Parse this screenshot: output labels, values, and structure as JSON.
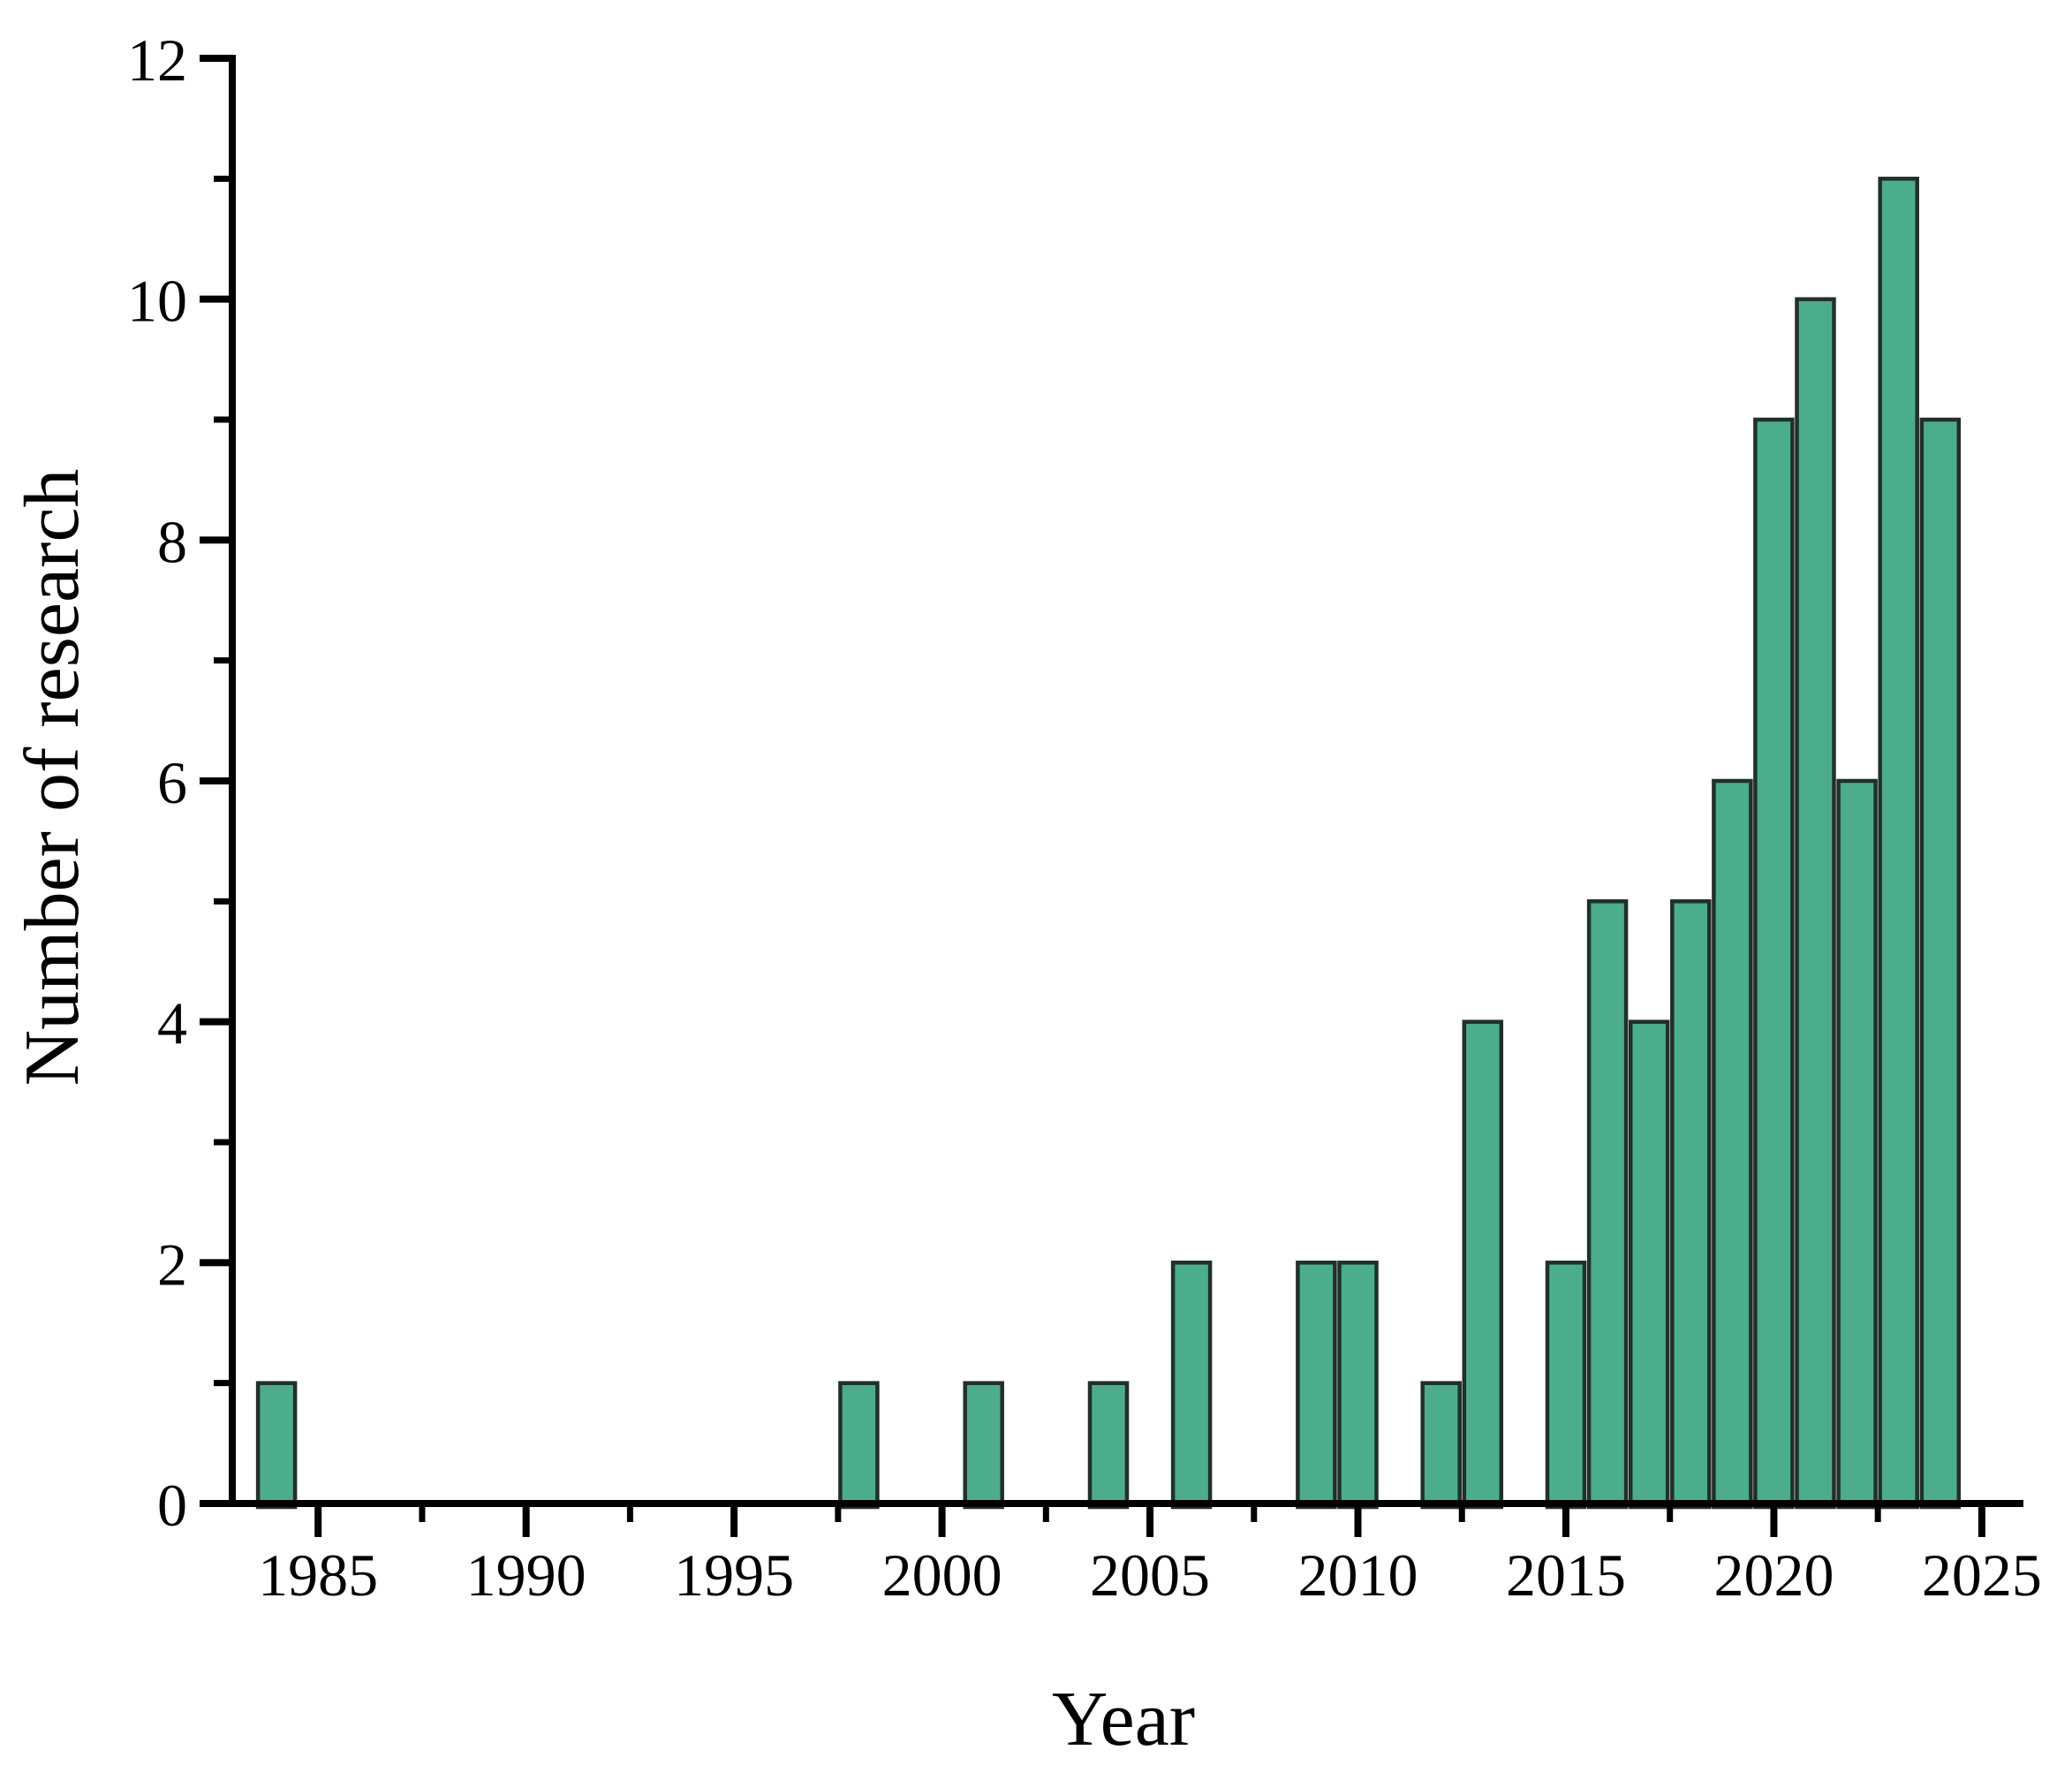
{
  "chart_data": {
    "type": "bar",
    "title": "",
    "xlabel": "Year",
    "ylabel": "Number of research",
    "x": [
      1984,
      1998,
      2001,
      2004,
      2006,
      2009,
      2010,
      2012,
      2013,
      2015,
      2016,
      2017,
      2018,
      2019,
      2020,
      2021,
      2022,
      2023,
      2024
    ],
    "values": [
      1,
      1,
      1,
      1,
      2,
      2,
      2,
      1,
      4,
      2,
      5,
      4,
      5,
      6,
      9,
      10,
      6,
      11,
      9
    ],
    "xlim": [
      1983,
      2026
    ],
    "ylim": [
      0,
      12
    ],
    "x_major_ticks": [
      1985,
      1990,
      1995,
      2000,
      2005,
      2010,
      2015,
      2020,
      2025
    ],
    "x_minor_ticks": [
      1987.5,
      1992.5,
      1997.5,
      2002.5,
      2007.5,
      2012.5,
      2017.5,
      2022.5
    ],
    "y_major_ticks": [
      0,
      2,
      4,
      6,
      8,
      10,
      12
    ],
    "y_minor_ticks": [
      1,
      3,
      5,
      7,
      9,
      11
    ],
    "bar_width_years": 0.9,
    "grid": false,
    "legend_position": "none",
    "colors": {
      "bar_fill": "#4CAD8B",
      "bar_edge": "#20302A",
      "axis": "#000000",
      "background": "#FFFFFF"
    }
  }
}
